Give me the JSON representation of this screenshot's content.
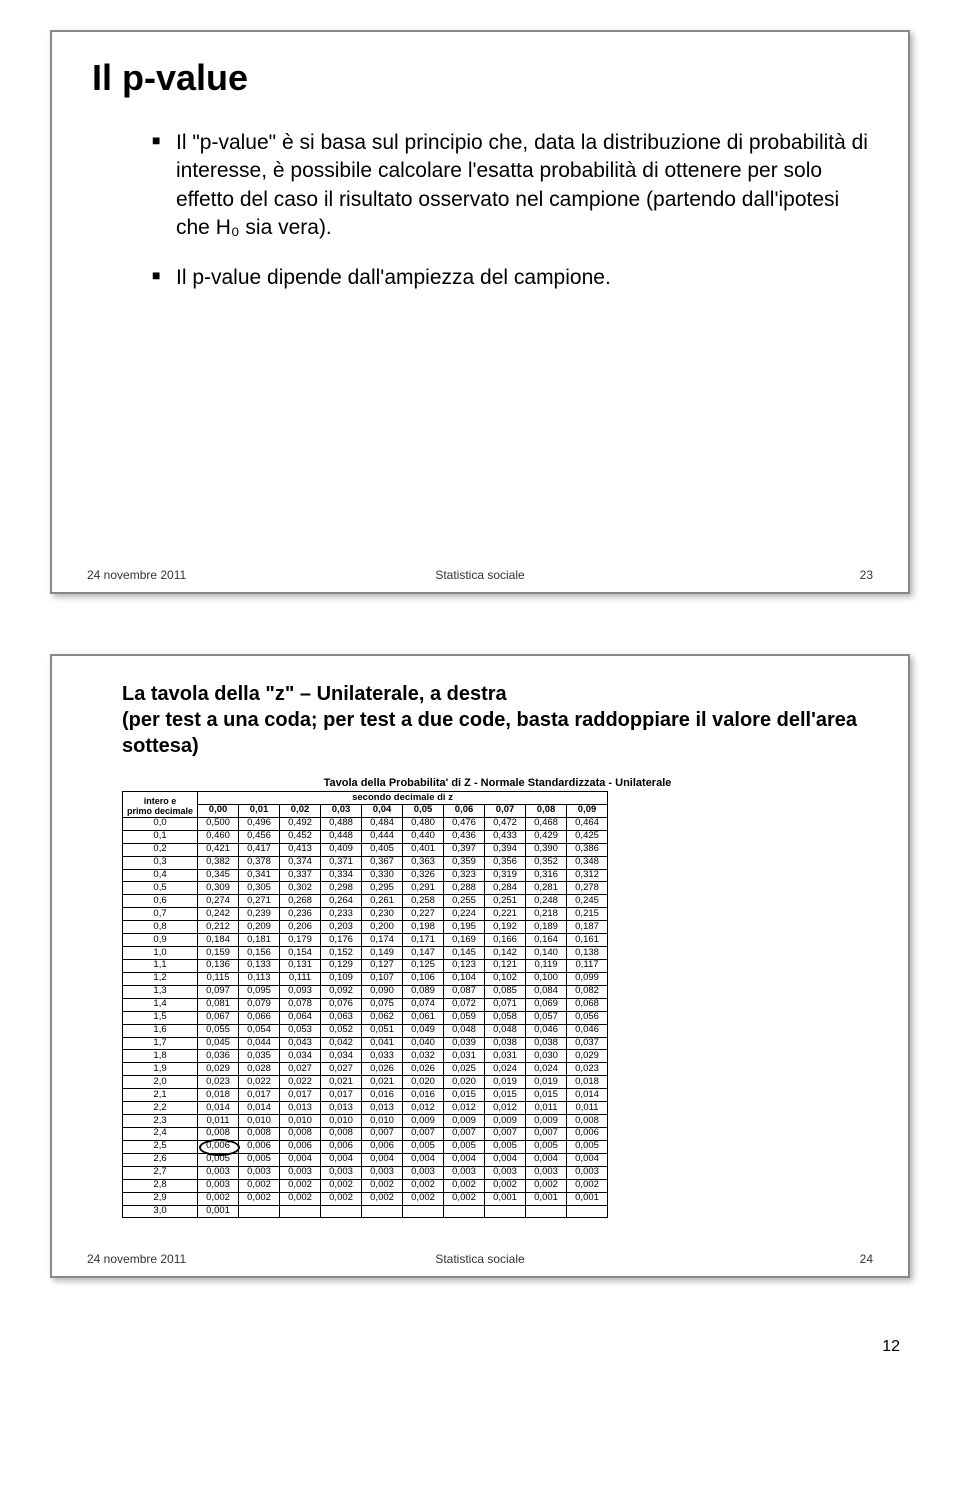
{
  "slide1": {
    "title": "Il p-value",
    "bullet1": "Il \"p-value\" è si basa sul principio che, data la distribuzione di probabilità di interesse, è possibile calcolare l'esatta probabilità di ottenere per solo effetto del caso il risultato osservato nel campione (partendo dall'ipotesi che H₀ sia vera).",
    "bullet2": "Il p-value dipende dall'ampiezza del campione.",
    "footer_date": "24 novembre 2011",
    "footer_center": "Statistica sociale",
    "footer_num": "23"
  },
  "slide2": {
    "heading_line1": "La tavola della \"z\" – Unilaterale, a destra",
    "heading_line2": "(per test a una coda; per test a due code, basta raddoppiare il valore dell'area sottesa)",
    "table_caption": "Tavola della Probabilita' di Z - Normale Standardizzata - Unilaterale",
    "corner_top": "intero e",
    "corner_bottom": "primo decimale",
    "col_super": "secondo decimale di z",
    "cols": [
      "0,00",
      "0,01",
      "0,02",
      "0,03",
      "0,04",
      "0,05",
      "0,06",
      "0,07",
      "0,08",
      "0,09"
    ],
    "rows": [
      {
        "h": "0,0",
        "v": [
          "0,500",
          "0,496",
          "0,492",
          "0,488",
          "0,484",
          "0,480",
          "0,476",
          "0,472",
          "0,468",
          "0,464"
        ]
      },
      {
        "h": "0,1",
        "v": [
          "0,460",
          "0,456",
          "0,452",
          "0,448",
          "0,444",
          "0,440",
          "0,436",
          "0,433",
          "0,429",
          "0,425"
        ]
      },
      {
        "h": "0,2",
        "v": [
          "0,421",
          "0,417",
          "0,413",
          "0,409",
          "0,405",
          "0,401",
          "0,397",
          "0,394",
          "0,390",
          "0,386"
        ]
      },
      {
        "h": "0,3",
        "v": [
          "0,382",
          "0,378",
          "0,374",
          "0,371",
          "0,367",
          "0,363",
          "0,359",
          "0,356",
          "0,352",
          "0,348"
        ]
      },
      {
        "h": "0,4",
        "v": [
          "0,345",
          "0,341",
          "0,337",
          "0,334",
          "0,330",
          "0,326",
          "0,323",
          "0,319",
          "0,316",
          "0,312"
        ]
      },
      {
        "h": "0,5",
        "v": [
          "0,309",
          "0,305",
          "0,302",
          "0,298",
          "0,295",
          "0,291",
          "0,288",
          "0,284",
          "0,281",
          "0,278"
        ]
      },
      {
        "h": "0,6",
        "v": [
          "0,274",
          "0,271",
          "0,268",
          "0,264",
          "0,261",
          "0,258",
          "0,255",
          "0,251",
          "0,248",
          "0,245"
        ]
      },
      {
        "h": "0,7",
        "v": [
          "0,242",
          "0,239",
          "0,236",
          "0,233",
          "0,230",
          "0,227",
          "0,224",
          "0,221",
          "0,218",
          "0,215"
        ]
      },
      {
        "h": "0,8",
        "v": [
          "0,212",
          "0,209",
          "0,206",
          "0,203",
          "0,200",
          "0,198",
          "0,195",
          "0,192",
          "0,189",
          "0,187"
        ]
      },
      {
        "h": "0,9",
        "v": [
          "0,184",
          "0,181",
          "0,179",
          "0,176",
          "0,174",
          "0,171",
          "0,169",
          "0,166",
          "0,164",
          "0,161"
        ]
      },
      {
        "h": "1,0",
        "v": [
          "0,159",
          "0,156",
          "0,154",
          "0,152",
          "0,149",
          "0,147",
          "0,145",
          "0,142",
          "0,140",
          "0,138"
        ]
      },
      {
        "h": "1,1",
        "v": [
          "0,136",
          "0,133",
          "0,131",
          "0,129",
          "0,127",
          "0,125",
          "0,123",
          "0,121",
          "0,119",
          "0,117"
        ]
      },
      {
        "h": "1,2",
        "v": [
          "0,115",
          "0,113",
          "0,111",
          "0,109",
          "0,107",
          "0,106",
          "0,104",
          "0,102",
          "0,100",
          "0,099"
        ]
      },
      {
        "h": "1,3",
        "v": [
          "0,097",
          "0,095",
          "0,093",
          "0,092",
          "0,090",
          "0,089",
          "0,087",
          "0,085",
          "0,084",
          "0,082"
        ]
      },
      {
        "h": "1,4",
        "v": [
          "0,081",
          "0,079",
          "0,078",
          "0,076",
          "0,075",
          "0,074",
          "0,072",
          "0,071",
          "0,069",
          "0,068"
        ]
      },
      {
        "h": "1,5",
        "v": [
          "0,067",
          "0,066",
          "0,064",
          "0,063",
          "0,062",
          "0,061",
          "0,059",
          "0,058",
          "0,057",
          "0,056"
        ]
      },
      {
        "h": "1,6",
        "v": [
          "0,055",
          "0,054",
          "0,053",
          "0,052",
          "0,051",
          "0,049",
          "0,048",
          "0,048",
          "0,046",
          "0,046"
        ]
      },
      {
        "h": "1,7",
        "v": [
          "0,045",
          "0,044",
          "0,043",
          "0,042",
          "0,041",
          "0,040",
          "0,039",
          "0,038",
          "0,038",
          "0,037"
        ]
      },
      {
        "h": "1,8",
        "v": [
          "0,036",
          "0,035",
          "0,034",
          "0,034",
          "0,033",
          "0,032",
          "0,031",
          "0,031",
          "0,030",
          "0,029"
        ]
      },
      {
        "h": "1,9",
        "v": [
          "0,029",
          "0,028",
          "0,027",
          "0,027",
          "0,026",
          "0,026",
          "0,025",
          "0,024",
          "0,024",
          "0,023"
        ]
      },
      {
        "h": "2,0",
        "v": [
          "0,023",
          "0,022",
          "0,022",
          "0,021",
          "0,021",
          "0,020",
          "0,020",
          "0,019",
          "0,019",
          "0,018"
        ]
      },
      {
        "h": "2,1",
        "v": [
          "0,018",
          "0,017",
          "0,017",
          "0,017",
          "0,016",
          "0,016",
          "0,015",
          "0,015",
          "0,015",
          "0,014"
        ]
      },
      {
        "h": "2,2",
        "v": [
          "0,014",
          "0,014",
          "0,013",
          "0,013",
          "0,013",
          "0,012",
          "0,012",
          "0,012",
          "0,011",
          "0,011"
        ]
      },
      {
        "h": "2,3",
        "v": [
          "0,011",
          "0,010",
          "0,010",
          "0,010",
          "0,010",
          "0,009",
          "0,009",
          "0,009",
          "0,009",
          "0,008"
        ]
      },
      {
        "h": "2,4",
        "v": [
          "0,008",
          "0,008",
          "0,008",
          "0,008",
          "0,007",
          "0,007",
          "0,007",
          "0,007",
          "0,007",
          "0,006"
        ]
      },
      {
        "h": "2,5",
        "v": [
          "0,006",
          "0,006",
          "0,006",
          "0,006",
          "0,006",
          "0,005",
          "0,005",
          "0,005",
          "0,005",
          "0,005"
        ]
      },
      {
        "h": "2,6",
        "v": [
          "0,005",
          "0,005",
          "0,004",
          "0,004",
          "0,004",
          "0,004",
          "0,004",
          "0,004",
          "0,004",
          "0,004"
        ]
      },
      {
        "h": "2,7",
        "v": [
          "0,003",
          "0,003",
          "0,003",
          "0,003",
          "0,003",
          "0,003",
          "0,003",
          "0,003",
          "0,003",
          "0,003"
        ]
      },
      {
        "h": "2,8",
        "v": [
          "0,003",
          "0,002",
          "0,002",
          "0,002",
          "0,002",
          "0,002",
          "0,002",
          "0,002",
          "0,002",
          "0,002"
        ]
      },
      {
        "h": "2,9",
        "v": [
          "0,002",
          "0,002",
          "0,002",
          "0,002",
          "0,002",
          "0,002",
          "0,002",
          "0,001",
          "0,001",
          "0,001"
        ]
      },
      {
        "h": "3,0",
        "v": [
          "0,001",
          "",
          "",
          "",
          "",
          "",
          "",
          "",
          "",
          ""
        ]
      }
    ],
    "footer_date": "24 novembre 2011",
    "footer_center": "Statistica sociale",
    "footer_num": "24",
    "circled_cell": {
      "row": 25,
      "col": 0
    }
  },
  "page_number": "12"
}
